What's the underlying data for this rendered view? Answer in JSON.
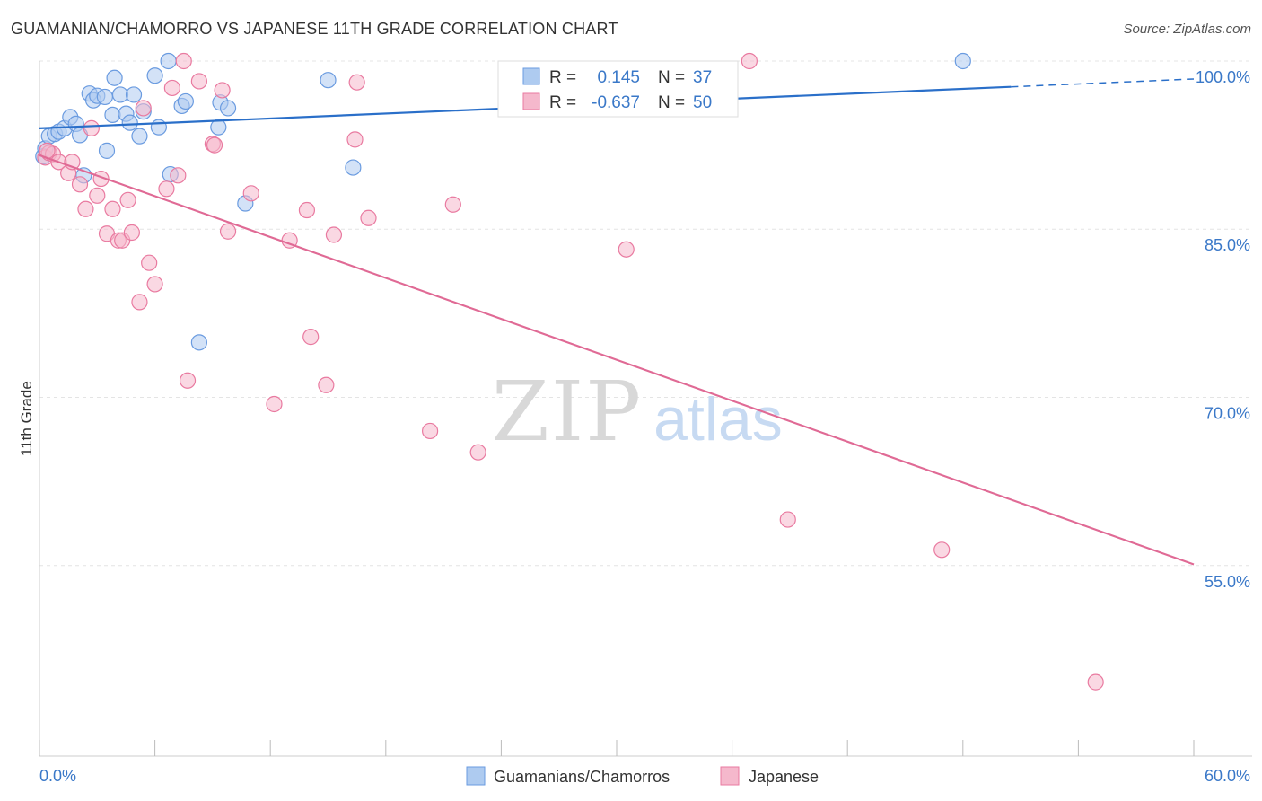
{
  "title": "GUAMANIAN/CHAMORRO VS JAPANESE 11TH GRADE CORRELATION CHART",
  "source": "Source: ZipAtlas.com",
  "colors": {
    "blue": "#6a9be0",
    "blue_fill": "#aecbf0",
    "blue_line": "#2a6fc9",
    "pink": "#e97aa0",
    "pink_fill": "#f5b8cc",
    "pink_line": "#e06a95",
    "tick_text": "#3a78c8",
    "grid": "#e4e4e4"
  },
  "legend": {
    "rows": [
      {
        "r_label": "R =",
        "r_value": "0.145",
        "n_label": "N =",
        "n_value": "37"
      },
      {
        "r_label": "R =",
        "r_value": "-0.637",
        "n_label": "N =",
        "n_value": "50"
      }
    ]
  },
  "bottom_legend": {
    "items": [
      "Guamanians/Chamorros",
      "Japanese"
    ]
  },
  "watermark": {
    "zip": "ZIP",
    "atlas": "atlas"
  },
  "chart_data": {
    "type": "scatter",
    "xlabel": "",
    "ylabel": "11th Grade",
    "xlim": [
      0,
      60
    ],
    "ylim": [
      38,
      100.8
    ],
    "x_tick_labels": [
      {
        "value": 0,
        "label": "0.0%"
      },
      {
        "value": 60,
        "label": "60.0%"
      }
    ],
    "x_minor_ticks": [
      6,
      12,
      18,
      24,
      30,
      36,
      42,
      48,
      54
    ],
    "y_tick_labels": [
      {
        "value": 100,
        "label": "100.0%"
      },
      {
        "value": 85,
        "label": "85.0%"
      },
      {
        "value": 70,
        "label": "70.0%"
      },
      {
        "value": 55,
        "label": "55.0%"
      }
    ],
    "series": [
      {
        "name": "Guamanians/Chamorros",
        "color": "blue",
        "r": 0.145,
        "n": 37,
        "trend": {
          "x0": 0,
          "y0": 94.0,
          "x1": 50.5,
          "y1": 97.7,
          "dash_to_x": 60,
          "dash_to_y": 98.4
        },
        "points": [
          [
            0.2,
            91.5
          ],
          [
            0.3,
            92.2
          ],
          [
            0.5,
            93.3
          ],
          [
            0.8,
            93.5
          ],
          [
            1.0,
            93.7
          ],
          [
            1.3,
            94.0
          ],
          [
            1.6,
            95.0
          ],
          [
            1.9,
            94.4
          ],
          [
            2.1,
            93.4
          ],
          [
            2.3,
            89.8
          ],
          [
            2.6,
            97.1
          ],
          [
            2.8,
            96.5
          ],
          [
            3.0,
            96.9
          ],
          [
            3.4,
            96.8
          ],
          [
            3.5,
            92.0
          ],
          [
            3.8,
            95.2
          ],
          [
            3.9,
            98.5
          ],
          [
            4.2,
            97.0
          ],
          [
            4.5,
            95.3
          ],
          [
            4.7,
            94.5
          ],
          [
            4.9,
            97.0
          ],
          [
            5.2,
            93.3
          ],
          [
            5.4,
            95.5
          ],
          [
            6.0,
            98.7
          ],
          [
            6.2,
            94.1
          ],
          [
            6.7,
            100.0
          ],
          [
            6.8,
            89.9
          ],
          [
            7.4,
            96.0
          ],
          [
            7.6,
            96.4
          ],
          [
            8.3,
            74.9
          ],
          [
            9.3,
            94.1
          ],
          [
            9.4,
            96.3
          ],
          [
            9.8,
            95.8
          ],
          [
            10.7,
            87.3
          ],
          [
            15.0,
            98.3
          ],
          [
            16.3,
            90.5
          ],
          [
            48.0,
            100.0
          ]
        ]
      },
      {
        "name": "Japanese",
        "color": "pink",
        "r": -0.637,
        "n": 50,
        "trend": {
          "x0": 0,
          "y0": 91.6,
          "x1": 60,
          "y1": 55.1
        },
        "points": [
          [
            0.3,
            91.4
          ],
          [
            0.5,
            91.8
          ],
          [
            0.7,
            91.7
          ],
          [
            1.0,
            91.0
          ],
          [
            1.5,
            90.0
          ],
          [
            1.7,
            91.0
          ],
          [
            2.1,
            89.0
          ],
          [
            2.4,
            86.8
          ],
          [
            2.7,
            94.0
          ],
          [
            3.0,
            88.0
          ],
          [
            3.2,
            89.5
          ],
          [
            3.5,
            84.6
          ],
          [
            3.8,
            86.8
          ],
          [
            4.1,
            84.0
          ],
          [
            4.3,
            84.0
          ],
          [
            4.6,
            87.6
          ],
          [
            4.8,
            84.7
          ],
          [
            5.2,
            78.5
          ],
          [
            5.4,
            95.8
          ],
          [
            5.7,
            82.0
          ],
          [
            6.0,
            80.1
          ],
          [
            6.6,
            88.6
          ],
          [
            6.9,
            97.6
          ],
          [
            7.2,
            89.8
          ],
          [
            7.5,
            100.0
          ],
          [
            7.7,
            71.5
          ],
          [
            8.3,
            98.2
          ],
          [
            9.0,
            92.6
          ],
          [
            9.1,
            92.5
          ],
          [
            9.5,
            97.4
          ],
          [
            9.8,
            84.8
          ],
          [
            11.0,
            88.2
          ],
          [
            12.2,
            69.4
          ],
          [
            13.0,
            84.0
          ],
          [
            13.9,
            86.7
          ],
          [
            14.1,
            75.4
          ],
          [
            14.9,
            71.1
          ],
          [
            15.3,
            84.5
          ],
          [
            16.5,
            98.1
          ],
          [
            16.4,
            93.0
          ],
          [
            17.1,
            86.0
          ],
          [
            20.3,
            67.0
          ],
          [
            21.5,
            87.2
          ],
          [
            22.8,
            65.1
          ],
          [
            30.5,
            83.2
          ],
          [
            36.9,
            100.0
          ],
          [
            38.9,
            59.1
          ],
          [
            46.9,
            56.4
          ],
          [
            54.9,
            44.6
          ],
          [
            0.4,
            92.0
          ]
        ]
      }
    ]
  }
}
